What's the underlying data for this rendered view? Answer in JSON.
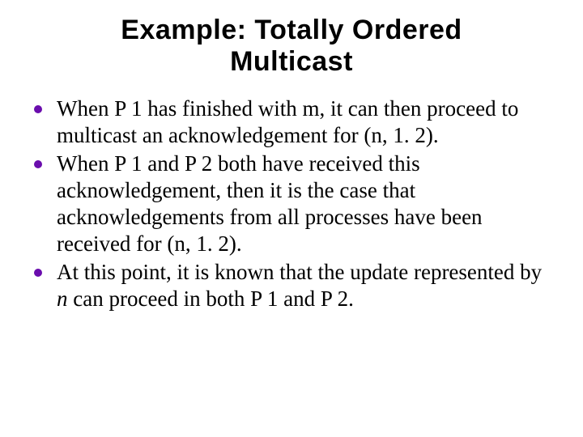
{
  "title": "Example: Totally Ordered Multicast",
  "title_fontsize": 34,
  "title_font": "Arial",
  "body_font": "Times New Roman",
  "body_fontsize": 27,
  "bullet_color": "#6a0dad",
  "text_color": "#000000",
  "background_color": "#ffffff",
  "bullets": [
    {
      "pre": "When P 1 has finished with m, it can then proceed to multicast an acknowledgement for (n, 1. 2)."
    },
    {
      "pre": "When P 1 and P 2 both have received this acknowledgement, then it is the case that acknowledgements from all processes have been received for (n, 1. 2)."
    },
    {
      "pre": "At this point, it is known that the update represented by ",
      "em": "n",
      "post": " can proceed in both P 1 and P 2."
    }
  ]
}
